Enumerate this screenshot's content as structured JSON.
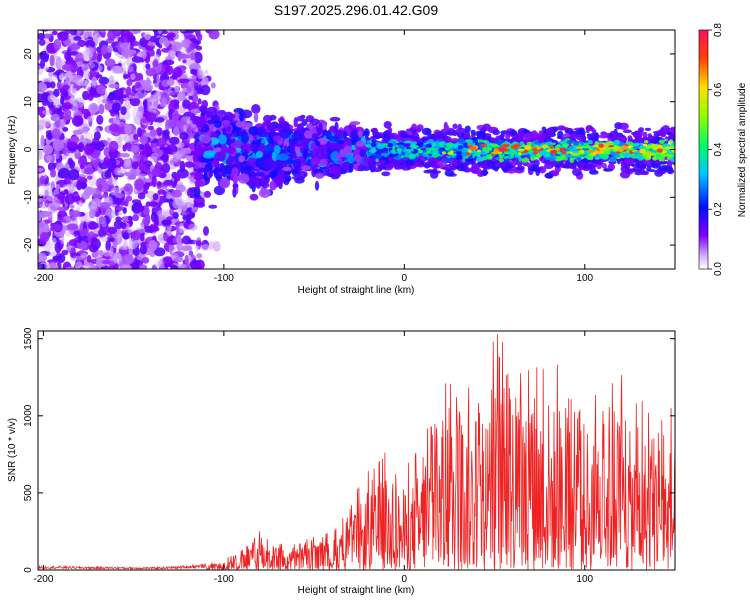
{
  "title": "S197.2025.296.01.42.G09",
  "chart_data": [
    {
      "type": "heatmap",
      "xlabel": "Height of straight line (km)",
      "ylabel": "Frequency (Hz)",
      "xlim": [
        -203,
        150
      ],
      "ylim": [
        -25,
        25
      ],
      "xticks": [
        "-200",
        "-100",
        "0",
        "100"
      ],
      "xtick_values": [
        -200,
        -100,
        0,
        100
      ],
      "yticks": [
        "-20",
        "-10",
        "0",
        "10",
        "20"
      ],
      "ytick_values": [
        -20,
        -10,
        0,
        10,
        20
      ],
      "colorbar": {
        "label": "Normalized spectral amplitude",
        "range": [
          0,
          0.8
        ],
        "ticks": [
          "0.0",
          "0.2",
          "0.4",
          "0.6",
          "0.8"
        ],
        "tick_values": [
          0,
          0.2,
          0.4,
          0.6,
          0.8
        ]
      },
      "description_regions": [
        {
          "x_range": [
            -203,
            -115
          ],
          "freq_spread": 25,
          "amplitude": 0.08
        },
        {
          "x_range": [
            -115,
            -20
          ],
          "freq_spread": 12,
          "amplitude": 0.18
        },
        {
          "x_range": [
            -20,
            150
          ],
          "freq_center": 0,
          "freq_spread": 3,
          "amplitude": 0.45
        }
      ]
    },
    {
      "type": "line",
      "xlabel": "Height of straight line (km)",
      "ylabel": "SNR (10 * v/v)",
      "xlim": [
        -203,
        150
      ],
      "ylim": [
        0,
        1550
      ],
      "xticks": [
        "-200",
        "-100",
        "0",
        "100"
      ],
      "xtick_values": [
        -200,
        -100,
        0,
        100
      ],
      "yticks": [
        "0",
        "500",
        "1000",
        "1500"
      ],
      "ytick_values": [
        0,
        500,
        1000,
        1500
      ],
      "series": [
        {
          "name": "SNR",
          "color": "#ee2222",
          "x": [
            -203,
            -190,
            -180,
            -170,
            -160,
            -150,
            -140,
            -130,
            -125,
            -120,
            -115,
            -110,
            -105,
            -100,
            -95,
            -90,
            -85,
            -80,
            -75,
            -70,
            -65,
            -60,
            -55,
            -50,
            -45,
            -40,
            -35,
            -30,
            -25,
            -20,
            -15,
            -10,
            -5,
            0,
            5,
            10,
            15,
            20,
            25,
            30,
            35,
            40,
            45,
            50,
            55,
            60,
            65,
            70,
            75,
            80,
            85,
            90,
            95,
            100,
            105,
            110,
            115,
            120,
            125,
            130,
            135,
            140,
            145,
            150
          ],
          "envelope": [
            25,
            25,
            22,
            20,
            20,
            18,
            18,
            22,
            25,
            30,
            35,
            40,
            55,
            80,
            100,
            130,
            200,
            270,
            250,
            210,
            160,
            180,
            200,
            220,
            230,
            260,
            330,
            420,
            560,
            650,
            680,
            800,
            750,
            700,
            760,
            920,
            1050,
            1150,
            1280,
            1350,
            1320,
            1350,
            1400,
            1550,
            1600,
            1550,
            1450,
            1400,
            1550,
            1500,
            1380,
            1200,
            1250,
            1280,
            1150,
            1180,
            1300,
            1350,
            1200,
            1100,
            1200,
            1250,
            1050,
            1100
          ]
        }
      ]
    }
  ]
}
